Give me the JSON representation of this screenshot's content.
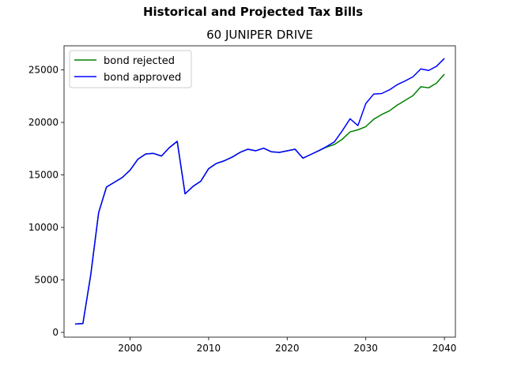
{
  "figure": {
    "suptitle": "Historical and Projected Tax Bills"
  },
  "chart_data": {
    "type": "line",
    "title": "60 JUNIPER DRIVE",
    "xlabel": "",
    "ylabel": "",
    "xlim": [
      1991.6,
      2041.4
    ],
    "ylim": [
      -450,
      27300
    ],
    "xticks": [
      2000,
      2010,
      2020,
      2030,
      2040
    ],
    "yticks": [
      0,
      5000,
      10000,
      15000,
      20000,
      25000
    ],
    "grid": false,
    "legend": "top-left",
    "series": [
      {
        "name": "bond rejected",
        "color": "#008000",
        "x": [
          1993,
          1994,
          1995,
          1996,
          1997,
          1998,
          1999,
          2000,
          2001,
          2002,
          2003,
          2004,
          2005,
          2006,
          2007,
          2008,
          2009,
          2010,
          2011,
          2012,
          2013,
          2014,
          2015,
          2016,
          2017,
          2018,
          2019,
          2020,
          2021,
          2022,
          2023,
          2024,
          2025,
          2026,
          2027,
          2028,
          2029,
          2030,
          2031,
          2032,
          2033,
          2034,
          2035,
          2036,
          2037,
          2038,
          2039,
          2040
        ],
        "values": [
          800,
          850,
          5500,
          11400,
          13850,
          14300,
          14750,
          15450,
          16500,
          17000,
          17050,
          16800,
          17600,
          18200,
          13200,
          13900,
          14400,
          15600,
          16100,
          16350,
          16700,
          17150,
          17450,
          17300,
          17550,
          17200,
          17150,
          17300,
          17450,
          16600,
          16950,
          17300,
          17650,
          17900,
          18400,
          19100,
          19300,
          19600,
          20300,
          20750,
          21100,
          21650,
          22100,
          22550,
          23400,
          23300,
          23750,
          24600
        ]
      },
      {
        "name": "bond approved",
        "color": "#0000ff",
        "x": [
          1993,
          1994,
          1995,
          1996,
          1997,
          1998,
          1999,
          2000,
          2001,
          2002,
          2003,
          2004,
          2005,
          2006,
          2007,
          2008,
          2009,
          2010,
          2011,
          2012,
          2013,
          2014,
          2015,
          2016,
          2017,
          2018,
          2019,
          2020,
          2021,
          2022,
          2023,
          2024,
          2025,
          2026,
          2027,
          2028,
          2029,
          2030,
          2031,
          2032,
          2033,
          2034,
          2035,
          2036,
          2037,
          2038,
          2039,
          2040
        ],
        "values": [
          800,
          850,
          5500,
          11400,
          13850,
          14300,
          14750,
          15450,
          16500,
          17000,
          17050,
          16800,
          17600,
          18200,
          13200,
          13900,
          14400,
          15600,
          16100,
          16350,
          16700,
          17150,
          17450,
          17300,
          17550,
          17200,
          17150,
          17300,
          17450,
          16600,
          16950,
          17300,
          17700,
          18150,
          19200,
          20350,
          19700,
          21800,
          22700,
          22750,
          23100,
          23600,
          23950,
          24350,
          25100,
          24950,
          25350,
          26100
        ]
      }
    ]
  }
}
